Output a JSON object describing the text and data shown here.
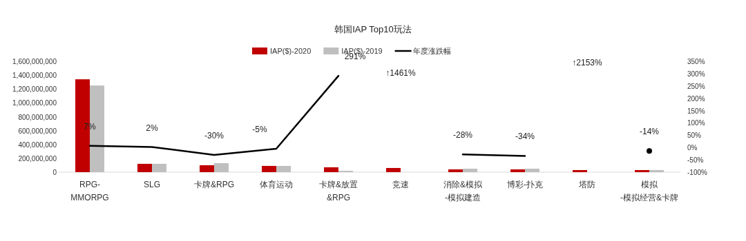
{
  "chart_data": {
    "type": "bar",
    "title": "韩国IAP Top10玩法",
    "categories": [
      "RPG-MMORPG",
      "SLG",
      "卡牌&RPG",
      "体育运动",
      "卡牌&放置&RPG",
      "竞速",
      "消除&模拟-模拟建造",
      "博彩-扑克",
      "塔防",
      "模拟-模拟经营&卡牌"
    ],
    "series": [
      {
        "name": "IAP($)-2020",
        "color": "#c00000",
        "values": [
          1340000000,
          120000000,
          100000000,
          90000000,
          70000000,
          60000000,
          40000000,
          40000000,
          30000000,
          30000000
        ]
      },
      {
        "name": "IAP($)-2019",
        "color": "#bfbfbf",
        "values": [
          1250000000,
          120000000,
          130000000,
          90000000,
          20000000,
          null,
          50000000,
          50000000,
          null,
          30000000
        ]
      },
      {
        "name": "年度涨跌幅",
        "type": "line",
        "axis": "y2",
        "color": "#000000",
        "values": [
          7,
          2,
          -30,
          -5,
          291,
          null,
          -28,
          -34,
          null,
          -14
        ],
        "value_labels": [
          "7%",
          "2%",
          "-30%",
          "-5%",
          "291%",
          null,
          "-28%",
          "-34%",
          null,
          "-14%"
        ]
      }
    ],
    "annotations": [
      "↑1461%",
      "↑2153%"
    ],
    "ylim": [
      0,
      1600000000
    ],
    "yticks": [
      {
        "value": 0,
        "label": "0"
      },
      {
        "value": 200000000,
        "label": "200,000,000"
      },
      {
        "value": 400000000,
        "label": "400,000,000"
      },
      {
        "value": 600000000,
        "label": "600,000,000"
      },
      {
        "value": 800000000,
        "label": "800,000,000"
      },
      {
        "value": 1000000000,
        "label": "1,000,000,000"
      },
      {
        "value": 1200000000,
        "label": "1,200,000,000"
      },
      {
        "value": 1400000000,
        "label": "1,400,000,000"
      },
      {
        "value": 1600000000,
        "label": "1,600,000,000"
      }
    ],
    "y2lim": [
      -100,
      350
    ],
    "y2ticks": [
      {
        "value": -100,
        "label": "-100%"
      },
      {
        "value": -50,
        "label": "-50%"
      },
      {
        "value": 0,
        "label": "0%"
      },
      {
        "value": 50,
        "label": "50%"
      },
      {
        "value": 100,
        "label": "100%"
      },
      {
        "value": 150,
        "label": "150%"
      },
      {
        "value": 200,
        "label": "200%"
      },
      {
        "value": 250,
        "label": "250%"
      },
      {
        "value": 300,
        "label": "300%"
      },
      {
        "value": 350,
        "label": "350%"
      }
    ],
    "legend": "top",
    "grid": false
  }
}
